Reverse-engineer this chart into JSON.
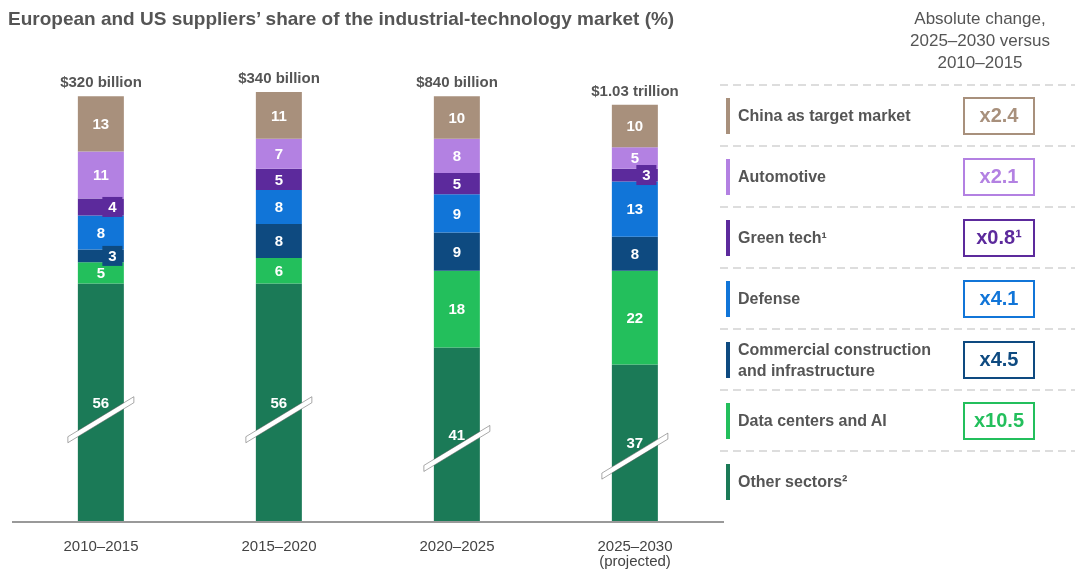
{
  "chart_data": {
    "type": "bar",
    "stacked": true,
    "data_labels": true,
    "title": "European and US suppliers’ share of the industrial-technology market (%)",
    "legend_title": "Absolute change, 2025–2030 versus 2010–2015",
    "legend": "right",
    "categories": [
      "2010–2015",
      "2015–2020",
      "2020–2025",
      "2025–2030 (projected)"
    ],
    "series": [
      {
        "name": "Other sectors²",
        "color": "#1b7a57",
        "values": [
          56,
          56,
          41,
          37
        ]
      },
      {
        "name": "Data centers and  AI",
        "color": "#23bf5c",
        "values": [
          5,
          6,
          18,
          22
        ]
      },
      {
        "name": "Commercial construction and infrastructure",
        "color": "#0e4a80",
        "values": [
          3,
          8,
          9,
          8
        ]
      },
      {
        "name": "Defense",
        "color": "#1175d8",
        "values": [
          8,
          8,
          9,
          13
        ]
      },
      {
        "name": "Green tech¹",
        "color": "#5c2a9c",
        "values": [
          4,
          5,
          5,
          3
        ]
      },
      {
        "name": "Automotive",
        "color": "#b381e2",
        "values": [
          11,
          7,
          8,
          5
        ]
      },
      {
        "name": "China as target market",
        "color": "#a8907c",
        "values": [
          13,
          11,
          10,
          10
        ]
      }
    ],
    "annotations": [
      "x2.4",
      "x2.1",
      "x0.8¹",
      "x4.1",
      "x4.5",
      "x10.5",
      {
        "text": "$320 billion",
        "x": "2010–2015",
        "y": 100
      },
      {
        "text": "$340 billion",
        "x": "2015–2020",
        "y": 101
      },
      {
        "text": "$840 billion",
        "x": "2020–2025",
        "y": 100
      },
      {
        "text": "$1.03 trillion",
        "x": "2025–2030 (projected)",
        "y": 98
      }
    ]
  }
}
